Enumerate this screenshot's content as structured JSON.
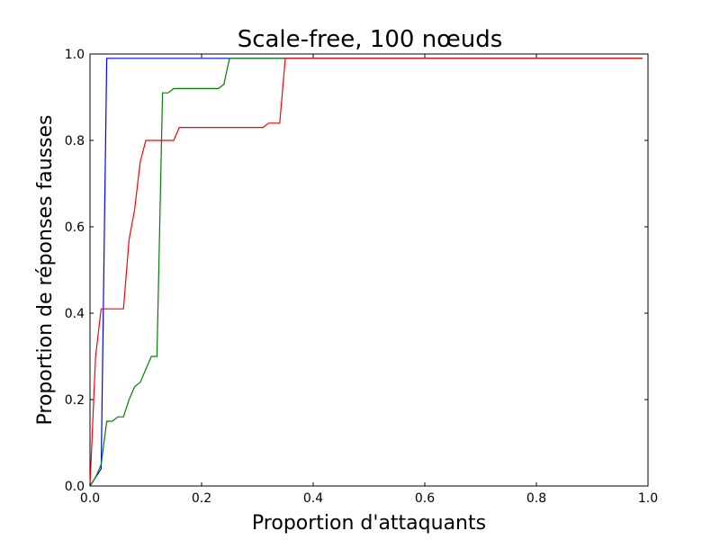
{
  "chart_data": {
    "type": "line",
    "title": "Scale-free, 100 nœuds",
    "xlabel": "Proportion d'attaquants",
    "ylabel": "Proportion de réponses fausses",
    "xlim": [
      0,
      1
    ],
    "ylim": [
      0,
      1
    ],
    "xticks": [
      "0.0",
      "0.2",
      "0.4",
      "0.6",
      "0.8",
      "1.0"
    ],
    "yticks": [
      "0.0",
      "0.2",
      "0.4",
      "0.6",
      "0.8",
      "1.0"
    ],
    "grid": false,
    "series": [
      {
        "color": "#0000ff",
        "x": [
          0.0,
          0.01,
          0.02,
          0.03,
          0.99
        ],
        "y": [
          0.0,
          0.02,
          0.04,
          0.99,
          0.99
        ]
      },
      {
        "color": "#008000",
        "x": [
          0.0,
          0.01,
          0.02,
          0.03,
          0.04,
          0.05,
          0.06,
          0.07,
          0.08,
          0.09,
          0.1,
          0.11,
          0.12,
          0.13,
          0.14,
          0.15,
          0.16,
          0.17,
          0.18,
          0.19,
          0.2,
          0.21,
          0.22,
          0.23,
          0.24,
          0.25,
          0.26,
          0.3,
          0.34,
          0.35,
          0.4,
          0.6,
          0.8,
          0.99
        ],
        "y": [
          0.0,
          0.02,
          0.05,
          0.15,
          0.15,
          0.16,
          0.16,
          0.2,
          0.23,
          0.24,
          0.27,
          0.3,
          0.3,
          0.91,
          0.91,
          0.92,
          0.92,
          0.92,
          0.92,
          0.92,
          0.92,
          0.92,
          0.92,
          0.92,
          0.93,
          0.99,
          0.99,
          0.99,
          0.99,
          0.99,
          0.99,
          0.99,
          0.99,
          0.99
        ]
      },
      {
        "color": "#ff0000",
        "x": [
          0.0,
          0.01,
          0.02,
          0.03,
          0.04,
          0.05,
          0.06,
          0.07,
          0.08,
          0.09,
          0.1,
          0.11,
          0.12,
          0.13,
          0.14,
          0.15,
          0.16,
          0.17,
          0.18,
          0.2,
          0.25,
          0.3,
          0.31,
          0.32,
          0.33,
          0.34,
          0.35,
          0.4,
          0.6,
          0.8,
          0.99
        ],
        "y": [
          0.0,
          0.3,
          0.41,
          0.41,
          0.41,
          0.41,
          0.41,
          0.57,
          0.64,
          0.75,
          0.8,
          0.8,
          0.8,
          0.8,
          0.8,
          0.8,
          0.83,
          0.83,
          0.83,
          0.83,
          0.83,
          0.83,
          0.83,
          0.84,
          0.84,
          0.84,
          0.99,
          0.99,
          0.99,
          0.99,
          0.99
        ]
      }
    ]
  }
}
